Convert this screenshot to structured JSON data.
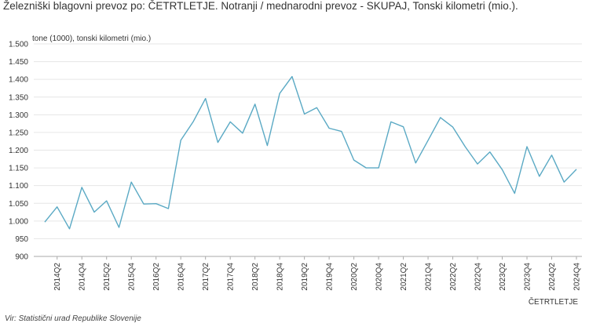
{
  "title": "Železniški blagovni prevoz po: ČETRTLETJE. Notranji / mednarodni prevoz - SKUPAJ, Tonski kilometri (mio.).",
  "source": "Vir: Statistični urad Republike Slovenije",
  "chart_data": {
    "type": "line",
    "ylabel": "tone (1000), tonski kilometri (mio.)",
    "xlabel": "ČETRTLETJE",
    "ylim": [
      900,
      1500
    ],
    "yticks": [
      "900",
      "950",
      "1.000",
      "1.050",
      "1.100",
      "1.150",
      "1.200",
      "1.250",
      "1.300",
      "1.350",
      "1.400",
      "1.450",
      "1.500"
    ],
    "grid": true,
    "line_color": "#5aa9c4",
    "x": [
      "2014Q1",
      "2014Q2",
      "2014Q3",
      "2014Q4",
      "2015Q1",
      "2015Q2",
      "2015Q3",
      "2015Q4",
      "2016Q1",
      "2016Q2",
      "2016Q3",
      "2016Q4",
      "2017Q1",
      "2017Q2",
      "2017Q3",
      "2017Q4",
      "2018Q1",
      "2018Q2",
      "2018Q3",
      "2018Q4",
      "2019Q1",
      "2019Q2",
      "2019Q3",
      "2019Q4",
      "2020Q1",
      "2020Q2",
      "2020Q3",
      "2020Q4",
      "2021Q1",
      "2021Q2",
      "2021Q3",
      "2021Q4",
      "2022Q1",
      "2022Q2",
      "2022Q3",
      "2022Q4",
      "2023Q1",
      "2023Q2",
      "2023Q3",
      "2023Q4",
      "2024Q1",
      "2024Q2",
      "2024Q3",
      "2024Q4"
    ],
    "xtick_labels": [
      "2014Q2",
      "2014Q4",
      "2015Q2",
      "2015Q4",
      "2016Q2",
      "2016Q4",
      "2017Q2",
      "2017Q4",
      "2018Q2",
      "2018Q4",
      "2019Q2",
      "2019Q4",
      "2020Q2",
      "2020Q4",
      "2021Q2",
      "2021Q4",
      "2022Q2",
      "2022Q4",
      "2023Q2",
      "2023Q4",
      "2024Q2",
      "2024Q4"
    ],
    "series": [
      {
        "values": [
          997,
          1040,
          978,
          1095,
          1025,
          1057,
          982,
          1110,
          1048,
          1049,
          1035,
          1228,
          1280,
          1346,
          1222,
          1280,
          1248,
          1330,
          1213,
          1360,
          1408,
          1302,
          1320,
          1262,
          1253,
          1172,
          1150,
          1150,
          1280,
          1266,
          1164,
          1228,
          1292,
          1265,
          1210,
          1161,
          1195,
          1145,
          1078,
          1210,
          1126,
          1186,
          1110,
          1146
        ]
      }
    ]
  }
}
